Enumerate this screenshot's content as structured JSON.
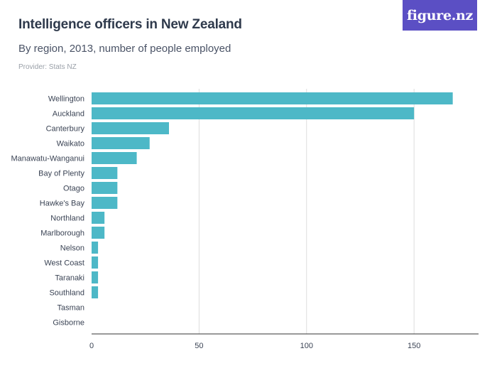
{
  "header": {
    "title": "Intelligence officers in New Zealand",
    "subtitle": "By region, 2013, number of people employed",
    "provider": "Provider: Stats NZ",
    "logo": "figure.nz"
  },
  "colors": {
    "bar": "#4db8c7",
    "grid": "#dddddd",
    "axis": "#333333",
    "logo_bg": "#5b4fc4"
  },
  "chart_data": {
    "type": "bar",
    "orientation": "horizontal",
    "title": "Intelligence officers in New Zealand",
    "subtitle": "By region, 2013, number of people employed",
    "categories": [
      "Wellington",
      "Auckland",
      "Canterbury",
      "Waikato",
      "Manawatu-Wanganui",
      "Bay of Plenty",
      "Otago",
      "Hawke's Bay",
      "Northland",
      "Marlborough",
      "Nelson",
      "West Coast",
      "Taranaki",
      "Southland",
      "Tasman",
      "Gisborne"
    ],
    "values": [
      168,
      150,
      36,
      27,
      21,
      12,
      12,
      12,
      6,
      6,
      3,
      3,
      3,
      3,
      0,
      0
    ],
    "xlim": [
      0,
      180
    ],
    "xticks": [
      0,
      50,
      100,
      150
    ],
    "grid": true,
    "legend": "none"
  }
}
